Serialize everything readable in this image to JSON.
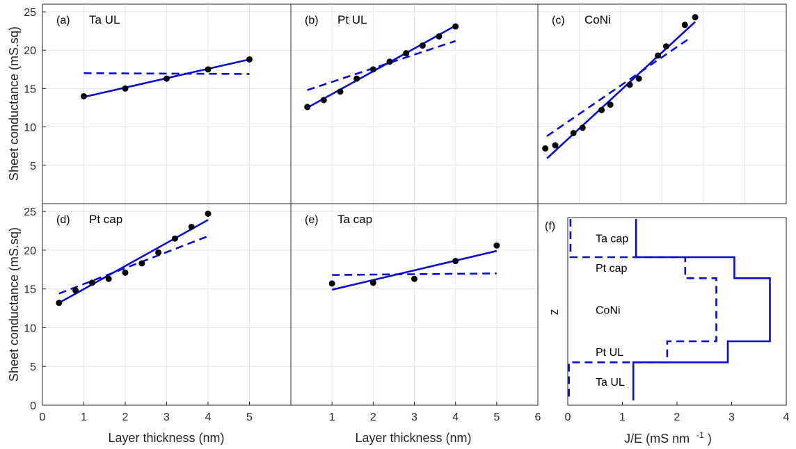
{
  "colors": {
    "line": "#0a0ad2",
    "marker": "#000000",
    "axis": "#262626",
    "grid": "#e6e6e6",
    "background": "#ffffff"
  },
  "labels": {
    "ylabel_top": "Sheet conductance (mS.sq)",
    "ylabel_bottom": "Sheet conductance (mS.sq)",
    "xlabel_a": "Layer thickness (nm)",
    "xlabel_b": "Layer thickness (nm)",
    "xlabel_f_main": "J/E (mS nm",
    "xlabel_f_sup": "-1",
    "xlabel_f_close": ")",
    "zlabel": "z"
  },
  "chart_data": [
    {
      "id": "a",
      "type": "scatter",
      "label": "(a)",
      "title": "Ta UL",
      "xlim": [
        0,
        6
      ],
      "ylim": [
        0,
        26
      ],
      "grid": true,
      "points": {
        "x": [
          1,
          2,
          3,
          4,
          5
        ],
        "y": [
          14.0,
          15.0,
          16.3,
          17.5,
          18.8
        ]
      },
      "fit_solid": {
        "x": [
          1,
          5
        ],
        "y": [
          13.9,
          18.8
        ]
      },
      "fit_dashed": {
        "x": [
          1,
          5
        ],
        "y": [
          17.0,
          16.9
        ]
      }
    },
    {
      "id": "b",
      "type": "scatter",
      "label": "(b)",
      "title": "Pt UL",
      "xlim": [
        0,
        6
      ],
      "ylim": [
        0,
        26
      ],
      "grid": true,
      "points": {
        "x": [
          0.4,
          0.8,
          1.2,
          1.6,
          2.0,
          2.4,
          2.8,
          3.2,
          3.6,
          4.0
        ],
        "y": [
          12.6,
          13.5,
          14.6,
          16.3,
          17.5,
          18.5,
          19.6,
          20.6,
          21.8,
          23.1
        ]
      },
      "fit_solid": {
        "x": [
          0.4,
          4.0
        ],
        "y": [
          12.5,
          23.2
        ]
      },
      "fit_dashed": {
        "x": [
          0.4,
          4.0
        ],
        "y": [
          14.8,
          21.2
        ]
      }
    },
    {
      "id": "c",
      "type": "scatter",
      "label": "(c)",
      "title": "CoNi",
      "xlim": [
        0,
        6
      ],
      "ylim": [
        0,
        26
      ],
      "grid": true,
      "points": {
        "x": [
          0.18,
          0.42,
          0.86,
          1.08,
          1.54,
          1.75,
          2.22,
          2.44,
          2.9,
          3.1,
          3.55,
          3.8
        ],
        "y": [
          7.2,
          7.6,
          9.2,
          9.9,
          12.2,
          12.9,
          15.5,
          16.3,
          19.3,
          20.5,
          23.3,
          24.3
        ]
      },
      "fit_solid": {
        "x": [
          0.22,
          3.8
        ],
        "y": [
          5.9,
          23.7
        ]
      },
      "fit_dashed": {
        "x": [
          0.22,
          3.65
        ],
        "y": [
          8.8,
          21.5
        ]
      }
    },
    {
      "id": "d",
      "type": "scatter",
      "label": "(d)",
      "title": "Pt cap",
      "xlim": [
        0,
        6
      ],
      "ylim": [
        0,
        26
      ],
      "grid": true,
      "points": {
        "x": [
          0.4,
          0.8,
          1.2,
          1.6,
          2.0,
          2.4,
          2.8,
          3.2,
          3.6,
          4.0
        ],
        "y": [
          13.2,
          14.8,
          15.8,
          16.3,
          17.1,
          18.3,
          19.7,
          21.5,
          23.0,
          24.7
        ]
      },
      "fit_solid": {
        "x": [
          0.4,
          4.0
        ],
        "y": [
          13.2,
          23.9
        ]
      },
      "fit_dashed": {
        "x": [
          0.4,
          4.0
        ],
        "y": [
          14.4,
          21.8
        ]
      }
    },
    {
      "id": "e",
      "type": "scatter",
      "label": "(e)",
      "title": "Ta cap",
      "xlim": [
        0,
        6
      ],
      "ylim": [
        0,
        26
      ],
      "grid": true,
      "points": {
        "x": [
          1,
          2,
          3,
          4,
          5
        ],
        "y": [
          15.7,
          15.8,
          16.3,
          18.6,
          20.6
        ]
      },
      "fit_solid": {
        "x": [
          1,
          5
        ],
        "y": [
          14.9,
          19.9
        ]
      },
      "fit_dashed": {
        "x": [
          1,
          5
        ],
        "y": [
          16.8,
          17.0
        ]
      }
    },
    {
      "id": "f",
      "type": "line",
      "label": "(f)",
      "xlim": [
        0,
        4
      ],
      "xlabel_ticks": [
        0,
        1,
        2,
        3,
        4
      ],
      "grid": false,
      "layers": [
        {
          "name": "Ta cap",
          "z_start": 0,
          "z_end": 1
        },
        {
          "name": "Pt cap",
          "z_start": 1,
          "z_end": 1.55
        },
        {
          "name": "CoNi",
          "z_start": 1.55,
          "z_end": 3.2
        },
        {
          "name": "Pt UL",
          "z_start": 3.2,
          "z_end": 3.75
        },
        {
          "name": "Ta UL",
          "z_start": 3.75,
          "z_end": 4.75
        }
      ],
      "solid": {
        "x": [
          1.25,
          1.25,
          3.05,
          3.05,
          3.7,
          3.7,
          2.93,
          2.93,
          1.2,
          1.2
        ],
        "z": [
          0,
          1,
          1,
          1.55,
          1.55,
          3.2,
          3.2,
          3.75,
          3.75,
          4.75
        ]
      },
      "dashed": {
        "x": [
          0.05,
          0.05,
          2.15,
          2.15,
          2.72,
          2.72,
          1.82,
          1.82,
          0.02,
          0.02
        ],
        "z": [
          0,
          1,
          1,
          1.55,
          1.55,
          3.2,
          3.2,
          3.75,
          3.75,
          4.75
        ]
      }
    }
  ]
}
